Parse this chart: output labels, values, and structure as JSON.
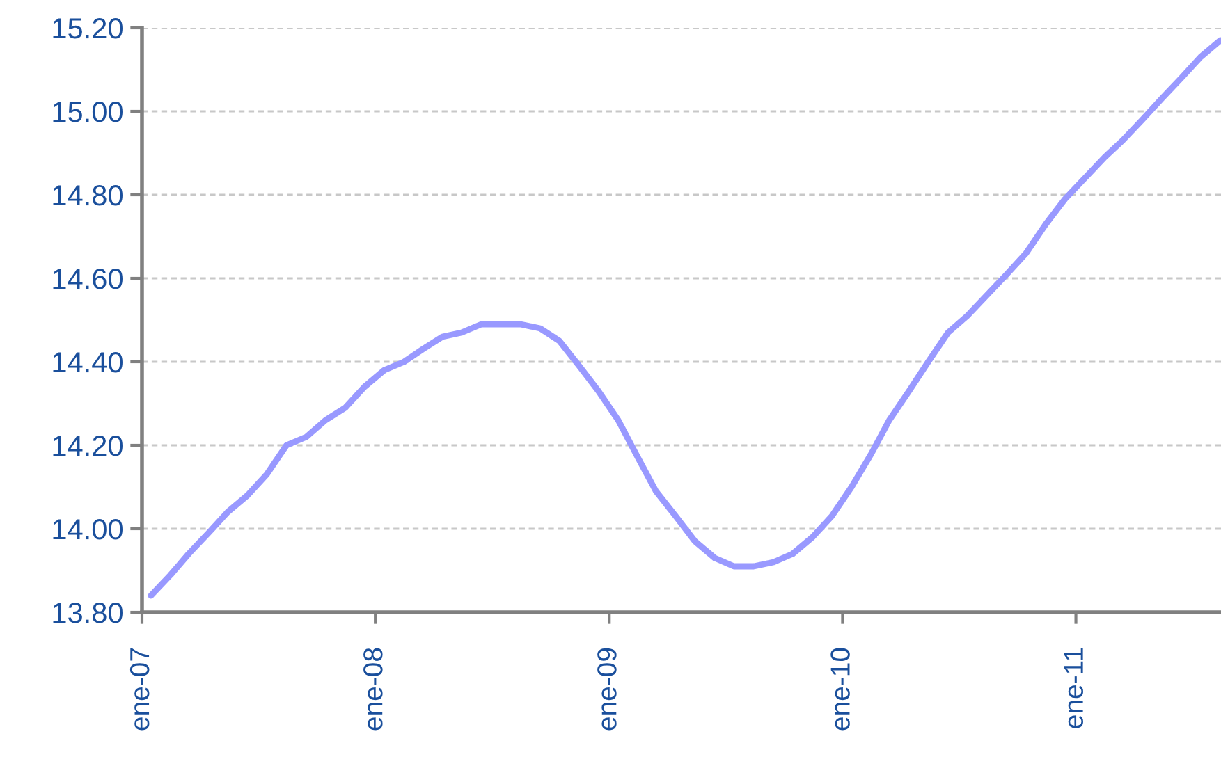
{
  "chart_data": {
    "type": "line",
    "x": [
      "2007-01-15",
      "2007-02-15",
      "2007-03-15",
      "2007-04-15",
      "2007-05-15",
      "2007-06-15",
      "2007-07-15",
      "2007-08-15",
      "2007-09-15",
      "2007-10-15",
      "2007-11-15",
      "2007-12-15",
      "2008-01-15",
      "2008-02-15",
      "2008-03-15",
      "2008-04-15",
      "2008-05-15",
      "2008-06-15",
      "2008-07-15",
      "2008-08-15",
      "2008-09-15",
      "2008-10-15",
      "2008-11-15",
      "2008-12-15",
      "2009-01-15",
      "2009-02-15",
      "2009-03-15",
      "2009-04-15",
      "2009-05-15",
      "2009-06-15",
      "2009-07-15",
      "2009-08-15",
      "2009-09-15",
      "2009-10-15",
      "2009-11-15",
      "2009-12-15",
      "2010-01-15",
      "2010-02-15",
      "2010-03-15",
      "2010-04-15",
      "2010-05-15",
      "2010-06-15",
      "2010-07-15",
      "2010-08-15",
      "2010-09-15",
      "2010-10-15",
      "2010-11-15",
      "2010-12-15",
      "2011-01-15",
      "2011-02-15",
      "2011-03-15",
      "2011-04-15",
      "2011-05-15",
      "2011-06-15",
      "2011-07-15",
      "2011-08-15"
    ],
    "series": [
      {
        "color": "#9999ff",
        "values": [
          13.84,
          13.89,
          13.94,
          13.99,
          14.04,
          14.08,
          14.13,
          14.2,
          14.22,
          14.26,
          14.29,
          14.34,
          14.38,
          14.4,
          14.43,
          14.46,
          14.47,
          14.49,
          14.49,
          14.49,
          14.48,
          14.45,
          14.39,
          14.33,
          14.26,
          14.17,
          14.09,
          14.03,
          13.97,
          13.93,
          13.91,
          13.91,
          13.92,
          13.94,
          13.98,
          14.03,
          14.1,
          14.18,
          14.26,
          14.33,
          14.4,
          14.47,
          14.51,
          14.56,
          14.61,
          14.66,
          14.73,
          14.79,
          14.84,
          14.89,
          14.93,
          14.98,
          15.03,
          15.08,
          15.13,
          15.17
        ]
      }
    ],
    "xlim": [
      "2007-01-01",
      "2011-08-16"
    ],
    "xticks": [
      {
        "value": "2007-01-01",
        "label": "ene-07"
      },
      {
        "value": "2008-01-01",
        "label": "ene-08"
      },
      {
        "value": "2009-01-01",
        "label": "ene-09"
      },
      {
        "value": "2010-01-01",
        "label": "ene-10"
      },
      {
        "value": "2011-01-01",
        "label": "ene-11"
      }
    ],
    "ylim": [
      13.8,
      15.2
    ],
    "yticks": [
      {
        "value": 13.8,
        "label": "13.80"
      },
      {
        "value": 14.0,
        "label": "14.00"
      },
      {
        "value": 14.2,
        "label": "14.20"
      },
      {
        "value": 14.4,
        "label": "14.40"
      },
      {
        "value": 14.6,
        "label": "14.60"
      },
      {
        "value": 14.8,
        "label": "14.80"
      },
      {
        "value": 15.0,
        "label": "15.00"
      },
      {
        "value": 15.2,
        "label": "15.20"
      }
    ],
    "grid": "y",
    "marker": "none",
    "line_style": "solid",
    "legend": false
  }
}
